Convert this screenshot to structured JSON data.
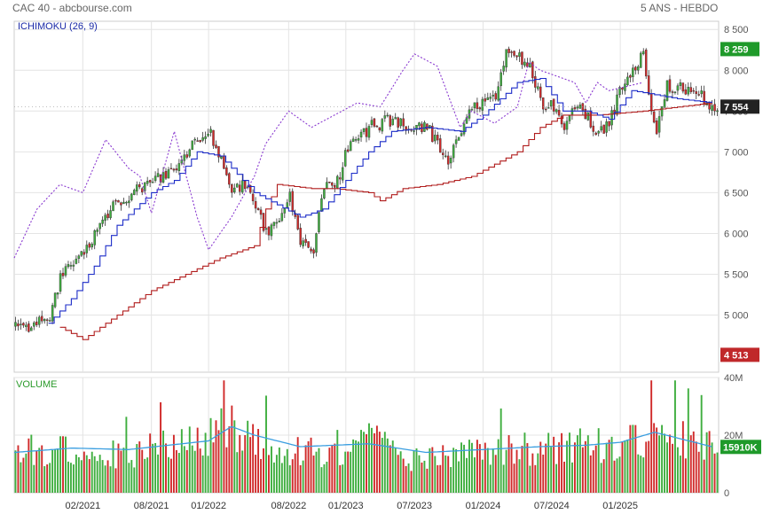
{
  "header": {
    "left": "CAC 40 - abcbourse.com",
    "right": "5 ANS - HEBDO"
  },
  "chart_data": {
    "type": "candlestick",
    "price_panel": {
      "label": "ICHIMOKU (26, 9)",
      "ylim": [
        4300,
        8600
      ],
      "y_ticks": [
        "8 500",
        "8 000",
        "7 500",
        "7 000",
        "6 500",
        "6 000",
        "5 500",
        "5 000"
      ],
      "y_tick_values": [
        8500,
        8000,
        7500,
        7000,
        6500,
        6000,
        5500,
        5000
      ],
      "badges": [
        {
          "label": "8 259",
          "value": 8259,
          "color": "#1f9a2a"
        },
        {
          "label": "7 554",
          "value": 7554,
          "color": "#222222"
        },
        {
          "label": "4 513",
          "value": 4513,
          "color": "#c0282a"
        }
      ],
      "close_anchors": [
        [
          "2020-09",
          4850
        ],
        [
          "2020-11",
          4950
        ],
        [
          "2020-12",
          5500
        ],
        [
          "2021-02",
          5750
        ],
        [
          "2021-03",
          6000
        ],
        [
          "2021-05",
          6400
        ],
        [
          "2021-07",
          6550
        ],
        [
          "2021-09",
          6700
        ],
        [
          "2021-10",
          6800
        ],
        [
          "2021-12",
          7150
        ],
        [
          "2022-01",
          7250
        ],
        [
          "2022-02",
          6900
        ],
        [
          "2022-03",
          6500
        ],
        [
          "2022-04",
          6600
        ],
        [
          "2022-06",
          6000
        ],
        [
          "2022-07",
          6200
        ],
        [
          "2022-08",
          6450
        ],
        [
          "2022-09",
          5900
        ],
        [
          "2022-10",
          5700
        ],
        [
          "2022-11",
          6600
        ],
        [
          "2022-12",
          6550
        ],
        [
          "2023-01",
          7000
        ],
        [
          "2023-03",
          7300
        ],
        [
          "2023-05",
          7400
        ],
        [
          "2023-06",
          7300
        ],
        [
          "2023-08",
          7300
        ],
        [
          "2023-10",
          6900
        ],
        [
          "2023-12",
          7550
        ],
        [
          "2024-02",
          7700
        ],
        [
          "2024-03",
          8200
        ],
        [
          "2024-05",
          8100
        ],
        [
          "2024-06",
          7600
        ],
        [
          "2024-07",
          7550
        ],
        [
          "2024-08",
          7300
        ],
        [
          "2024-09",
          7600
        ],
        [
          "2024-11",
          7250
        ],
        [
          "2024-12",
          7350
        ],
        [
          "2025-01",
          7800
        ],
        [
          "2025-03",
          8200
        ],
        [
          "2025-04",
          7200
        ],
        [
          "2025-05",
          7800
        ],
        [
          "2025-07",
          7750
        ],
        [
          "2025-08",
          7700
        ],
        [
          "2025-09",
          7554
        ]
      ],
      "tenkan_anchors": [
        [
          "2020-11",
          4900
        ],
        [
          "2021-01",
          5200
        ],
        [
          "2021-03",
          5600
        ],
        [
          "2021-05",
          6100
        ],
        [
          "2021-08",
          6500
        ],
        [
          "2021-10",
          6650
        ],
        [
          "2021-12",
          7000
        ],
        [
          "2022-02",
          6950
        ],
        [
          "2022-05",
          6500
        ],
        [
          "2022-09",
          6200
        ],
        [
          "2022-11",
          6300
        ],
        [
          "2023-01",
          6650
        ],
        [
          "2023-03",
          7000
        ],
        [
          "2023-05",
          7250
        ],
        [
          "2023-08",
          7300
        ],
        [
          "2023-11",
          7250
        ],
        [
          "2024-01",
          7450
        ],
        [
          "2024-04",
          7850
        ],
        [
          "2024-06",
          7900
        ],
        [
          "2024-08",
          7500
        ],
        [
          "2024-10",
          7500
        ],
        [
          "2024-12",
          7400
        ],
        [
          "2025-02",
          7750
        ],
        [
          "2025-04",
          7700
        ],
        [
          "2025-06",
          7650
        ],
        [
          "2025-09",
          7600
        ]
      ],
      "kijun_anchors": [
        [
          "2020-12",
          4850
        ],
        [
          "2021-02",
          4700
        ],
        [
          "2021-05",
          5000
        ],
        [
          "2021-08",
          5300
        ],
        [
          "2021-11",
          5500
        ],
        [
          "2022-02",
          5700
        ],
        [
          "2022-05",
          5850
        ],
        [
          "2022-06",
          6300
        ],
        [
          "2022-07",
          6600
        ],
        [
          "2022-10",
          6550
        ],
        [
          "2022-12",
          6550
        ],
        [
          "2023-03",
          6500
        ],
        [
          "2023-04",
          6400
        ],
        [
          "2023-06",
          6550
        ],
        [
          "2023-09",
          6600
        ],
        [
          "2023-12",
          6700
        ],
        [
          "2024-02",
          6850
        ],
        [
          "2024-04",
          7000
        ],
        [
          "2024-06",
          7300
        ],
        [
          "2024-08",
          7450
        ],
        [
          "2024-11",
          7450
        ],
        [
          "2025-03",
          7500
        ],
        [
          "2025-06",
          7550
        ],
        [
          "2025-09",
          7600
        ]
      ],
      "chikou_anchors": [
        [
          "2020-08",
          5700
        ],
        [
          "2020-10",
          6300
        ],
        [
          "2020-12",
          6600
        ],
        [
          "2021-02",
          6500
        ],
        [
          "2021-04",
          7150
        ],
        [
          "2021-06",
          6800
        ],
        [
          "2021-07",
          6700
        ],
        [
          "2021-08",
          6250
        ],
        [
          "2021-10",
          7250
        ],
        [
          "2021-12",
          6200
        ],
        [
          "2022-01",
          5800
        ],
        [
          "2022-03",
          6200
        ],
        [
          "2022-05",
          6700
        ],
        [
          "2022-06",
          7100
        ],
        [
          "2022-08",
          7500
        ],
        [
          "2022-09",
          7400
        ],
        [
          "2022-10",
          7300
        ],
        [
          "2022-12",
          7450
        ],
        [
          "2023-02",
          7600
        ],
        [
          "2023-04",
          7550
        ],
        [
          "2023-06",
          8000
        ],
        [
          "2023-07",
          8200
        ],
        [
          "2023-09",
          8050
        ],
        [
          "2023-11",
          7300
        ],
        [
          "2023-12",
          7500
        ],
        [
          "2024-02",
          7350
        ],
        [
          "2024-04",
          7550
        ],
        [
          "2024-05",
          8100
        ],
        [
          "2024-06",
          8000
        ],
        [
          "2024-09",
          7850
        ],
        [
          "2024-10",
          7600
        ],
        [
          "2024-11",
          7850
        ],
        [
          "2024-12",
          7750
        ],
        [
          "2025-03",
          7850
        ]
      ]
    },
    "volume_panel": {
      "label": "VOLUME",
      "ylim": [
        0,
        40
      ],
      "y_ticks": [
        "40M",
        "20M",
        "0"
      ],
      "y_tick_values": [
        40,
        20,
        0
      ],
      "unit": "M",
      "last_badge": {
        "label": "15910K",
        "value": 15.91,
        "color": "#1f9a2a"
      },
      "volume_anchors": [
        [
          "2020-08",
          14
        ],
        [
          "2021-01",
          16
        ],
        [
          "2021-06",
          13
        ],
        [
          "2021-12",
          19
        ],
        [
          "2022-03",
          22
        ],
        [
          "2022-07",
          15
        ],
        [
          "2022-10",
          14
        ],
        [
          "2023-03",
          18
        ],
        [
          "2023-07",
          12
        ],
        [
          "2023-12",
          14
        ],
        [
          "2024-04",
          15
        ],
        [
          "2024-07",
          16
        ],
        [
          "2024-12",
          17
        ],
        [
          "2025-03",
          19
        ],
        [
          "2025-04",
          26
        ],
        [
          "2025-06",
          19
        ],
        [
          "2025-09",
          16
        ]
      ],
      "ma_anchors": [
        [
          "2020-08",
          14
        ],
        [
          "2021-01",
          15.5
        ],
        [
          "2021-06",
          15
        ],
        [
          "2022-01",
          18
        ],
        [
          "2022-03",
          23
        ],
        [
          "2022-05",
          20
        ],
        [
          "2022-09",
          16
        ],
        [
          "2023-03",
          17
        ],
        [
          "2023-08",
          14
        ],
        [
          "2024-01",
          15
        ],
        [
          "2024-06",
          16
        ],
        [
          "2024-10",
          16.5
        ],
        [
          "2025-01",
          17.5
        ],
        [
          "2025-04",
          21
        ],
        [
          "2025-06",
          19
        ],
        [
          "2025-09",
          16
        ]
      ]
    },
    "x_axis": {
      "labels": [
        "02/2021",
        "08/2021",
        "01/2022",
        "08/2022",
        "01/2023",
        "07/2023",
        "01/2024",
        "07/2024",
        "01/2025"
      ],
      "dates": [
        "2021-02",
        "2021-08",
        "2022-01",
        "2022-08",
        "2023-01",
        "2023-07",
        "2024-01",
        "2024-07",
        "2025-01"
      ],
      "range": [
        "2020-08",
        "2025-09"
      ]
    },
    "colors": {
      "up": "#3fae3f",
      "down": "#d02a2a",
      "tenkan": "#1c2cc8",
      "kijun": "#b01c1c",
      "chikou": "#8a3ad0",
      "volume_ma": "#3a9ee0"
    }
  }
}
